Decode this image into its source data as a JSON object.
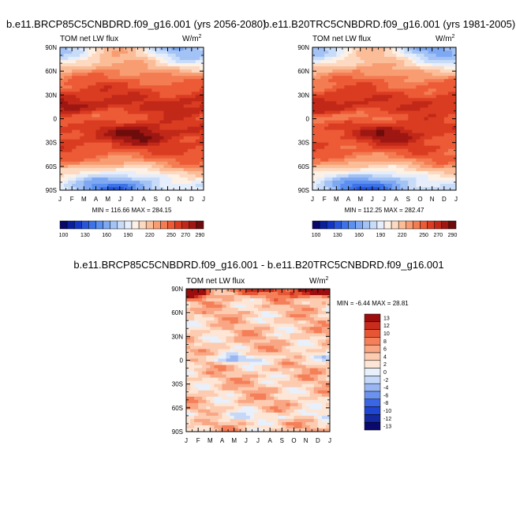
{
  "chart_data": [
    {
      "type": "heatmap",
      "title": "b.e11.BRCP85C5CNBDRD.f09_g16.001 (yrs 2056-2080)",
      "left_label": "TOM net LW flux",
      "units_base": "W/m",
      "units_exp": "2",
      "x_ticks": [
        "J",
        "F",
        "M",
        "A",
        "M",
        "J",
        "J",
        "A",
        "S",
        "O",
        "N",
        "D",
        "J"
      ],
      "y_ticks": [
        "90N",
        "60N",
        "30N",
        "0",
        "30S",
        "60S",
        "90S"
      ],
      "y_range": [
        -90,
        90
      ],
      "stats": "MIN = 116.66 MAX = 284.15",
      "contour_levels": [
        100,
        110,
        120,
        130,
        140,
        150,
        160,
        170,
        180,
        190,
        200,
        210,
        220,
        230,
        240,
        250,
        260,
        270,
        280,
        290
      ],
      "colorbar_labels": [
        "100",
        "130",
        "160",
        "190",
        "220",
        "250",
        "270",
        "290"
      ]
    },
    {
      "type": "heatmap",
      "title": "b.e11.B20TRC5CNBDRD.f09_g16.001 (yrs 1981-2005)",
      "left_label": "TOM net LW flux",
      "units_base": "W/m",
      "units_exp": "2",
      "x_ticks": [
        "J",
        "F",
        "M",
        "A",
        "M",
        "J",
        "J",
        "A",
        "S",
        "O",
        "N",
        "D",
        "J"
      ],
      "y_ticks": [
        "90N",
        "60N",
        "30N",
        "0",
        "30S",
        "60S",
        "90S"
      ],
      "y_range": [
        -90,
        90
      ],
      "stats": "MIN = 112.25 MAX = 282.47",
      "contour_levels": [
        100,
        110,
        120,
        130,
        140,
        150,
        160,
        170,
        180,
        190,
        200,
        210,
        220,
        230,
        240,
        250,
        260,
        270,
        280,
        290
      ],
      "colorbar_labels": [
        "100",
        "130",
        "160",
        "190",
        "220",
        "250",
        "270",
        "290"
      ]
    },
    {
      "type": "heatmap",
      "title": "b.e11.BRCP85C5CNBDRD.f09_g16.001 - b.e11.B20TRC5CNBDRD.f09_g16.001",
      "left_label": "TOM net LW flux",
      "units_base": "W/m",
      "units_exp": "2",
      "x_ticks": [
        "J",
        "F",
        "M",
        "A",
        "M",
        "J",
        "J",
        "A",
        "S",
        "O",
        "N",
        "D",
        "J"
      ],
      "y_ticks": [
        "90N",
        "60N",
        "30N",
        "0",
        "30S",
        "60S",
        "90S"
      ],
      "y_range": [
        -90,
        90
      ],
      "stats": "MIN =  -6.44 MAX =  28.81",
      "contour_levels": [
        -13,
        -12,
        -10,
        -8,
        -6,
        -4,
        -2,
        0,
        2,
        4,
        6,
        8,
        10,
        12,
        13
      ],
      "colorbar_labels": [
        "13",
        "12",
        "10",
        "8",
        "6",
        "4",
        "2",
        "0",
        "-2",
        "-4",
        "-6",
        "-8",
        "-10",
        "-12",
        "-13"
      ]
    }
  ],
  "colors": {
    "abs_palette": [
      "#08086b",
      "#0a1f9c",
      "#1336c4",
      "#2755dc",
      "#3d72e8",
      "#5b8ff0",
      "#7ea8f2",
      "#a3c2f5",
      "#c8dcf8",
      "#e6eefb",
      "#fdf0e4",
      "#fcd9c0",
      "#fbbc98",
      "#f89c72",
      "#f47c52",
      "#ec5a36",
      "#da3c22",
      "#c22818",
      "#9e1712",
      "#6e0c0c"
    ],
    "diff_palette": [
      "#0a0a6e",
      "#1428a0",
      "#1f46d2",
      "#3a66e6",
      "#6a92ee",
      "#9ab6f2",
      "#c6d8f8",
      "#e8f0fc",
      "#fde6d6",
      "#fccbb0",
      "#f9a684",
      "#f47f58",
      "#e65634",
      "#c92c1c",
      "#9c0e0e"
    ]
  }
}
